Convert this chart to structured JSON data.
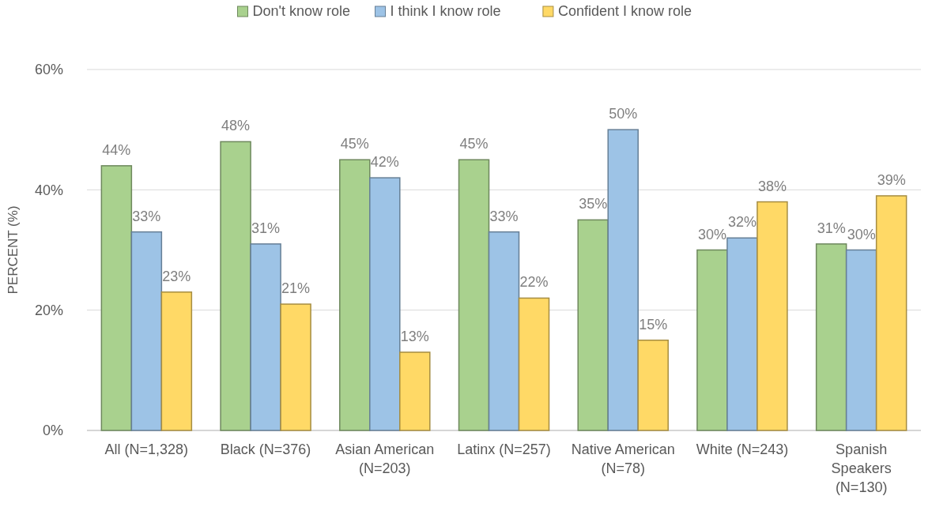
{
  "chart_data": {
    "type": "bar",
    "ylabel": "PERCENT (%)",
    "categories": [
      "All (N=1,328)",
      "Black (N=376)",
      "Asian American (N=203)",
      "Latinx (N=257)",
      "Native American (N=78)",
      "White (N=243)",
      "Spanish Speakers (N=130)"
    ],
    "series": [
      {
        "name": "Don't know role",
        "color": "#a9d18e",
        "values": [
          44,
          48,
          45,
          45,
          35,
          30,
          31
        ],
        "value_labels": [
          "44%",
          "48%",
          "45%",
          "45%",
          "35%",
          "30%",
          "31%"
        ]
      },
      {
        "name": "I think I know role",
        "color": "#9dc3e6",
        "values": [
          33,
          31,
          42,
          33,
          50,
          32,
          30
        ],
        "value_labels": [
          "33%",
          "31%",
          "42%",
          "33%",
          "50%",
          "32%",
          "30%"
        ]
      },
      {
        "name": "Confident I know role",
        "color": "#ffd966",
        "values": [
          23,
          21,
          13,
          22,
          15,
          38,
          39
        ],
        "value_labels": [
          "23%",
          "21%",
          "13%",
          "22%",
          "15%",
          "38%",
          "39%"
        ]
      }
    ],
    "ylim": [
      0,
      60
    ],
    "yticks": [
      {
        "value": 0,
        "label": "0%"
      },
      {
        "value": 20,
        "label": "20%"
      },
      {
        "value": 40,
        "label": "40%"
      },
      {
        "value": 60,
        "label": "60%"
      }
    ],
    "grid": "y",
    "legend": "top"
  }
}
